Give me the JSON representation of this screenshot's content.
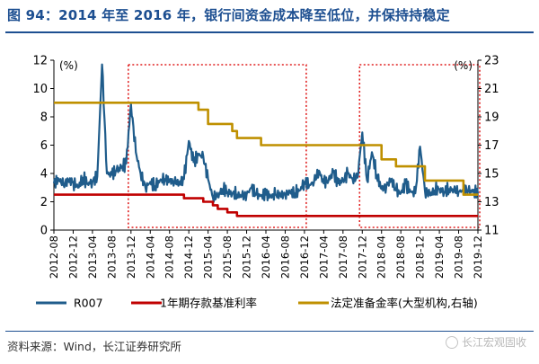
{
  "figure_title": "图 94：2014 年至 2016 年，银行间资金成本降至低位，并保持持稳定",
  "source": "资料来源：Wind，长江证券研究所",
  "watermark": "长江宏观固收",
  "colors": {
    "title": "#1d4f91",
    "r007": "#1f5c8b",
    "deposit": "#c00000",
    "rrr": "#bf9000",
    "highlight_box": "#e02020"
  },
  "chart_data": {
    "type": "line",
    "x": [
      "2012-08",
      "2012-12",
      "2013-04",
      "2013-08",
      "2013-12",
      "2014-04",
      "2014-08",
      "2014-12",
      "2015-04",
      "2015-08",
      "2015-12",
      "2016-04",
      "2016-08",
      "2016-12",
      "2017-04",
      "2017-08",
      "2017-12",
      "2018-04",
      "2018-08",
      "2018-12",
      "2019-04",
      "2019-08",
      "2019-12"
    ],
    "x_tick_labels": [
      "2012-08",
      "2012-12",
      "2013-04",
      "2013-08",
      "2013-12",
      "2014-04",
      "2014-08",
      "2014-12",
      "2015-04",
      "2015-08",
      "2015-12",
      "2016-04",
      "2016-08",
      "2016-12",
      "2017-04",
      "2017-08",
      "2017-12",
      "2018-04",
      "2018-08",
      "2018-12",
      "2019-04",
      "2019-08",
      "2019-12"
    ],
    "y_left": {
      "unit_label": "(%)",
      "ylim": [
        0,
        12
      ],
      "ticks": [
        "0",
        "2",
        "4",
        "6",
        "8",
        "10",
        "12"
      ]
    },
    "y_right": {
      "unit_label": "(%)",
      "ylim": [
        11,
        23
      ],
      "ticks": [
        "11",
        "13",
        "15",
        "17",
        "19",
        "21",
        "23"
      ]
    },
    "grid": false,
    "legend_placement": "bottom",
    "series": [
      {
        "name": "R007",
        "axis": "left",
        "points": [
          [
            "2012-08",
            3.3
          ],
          [
            "2012-09",
            3.6
          ],
          [
            "2012-10",
            3.2
          ],
          [
            "2012-11",
            3.5
          ],
          [
            "2012-12",
            3.4
          ],
          [
            "2013-01",
            3.0
          ],
          [
            "2013-02",
            3.7
          ],
          [
            "2013-03",
            3.3
          ],
          [
            "2013-04",
            3.4
          ],
          [
            "2013-05",
            3.8
          ],
          [
            "2013-06",
            11.7
          ],
          [
            "2013-07",
            4.0
          ],
          [
            "2013-08",
            3.9
          ],
          [
            "2013-09",
            4.2
          ],
          [
            "2013-10",
            4.4
          ],
          [
            "2013-11",
            4.7
          ],
          [
            "2013-12",
            8.9
          ],
          [
            "2014-01",
            5.5
          ],
          [
            "2014-02",
            4.0
          ],
          [
            "2014-03",
            3.0
          ],
          [
            "2014-04",
            3.4
          ],
          [
            "2014-05",
            3.1
          ],
          [
            "2014-06",
            3.5
          ],
          [
            "2014-07",
            3.6
          ],
          [
            "2014-08",
            3.5
          ],
          [
            "2014-09",
            3.4
          ],
          [
            "2014-10",
            3.3
          ],
          [
            "2014-11",
            3.6
          ],
          [
            "2014-12",
            6.3
          ],
          [
            "2015-01",
            4.8
          ],
          [
            "2015-02",
            5.3
          ],
          [
            "2015-03",
            5.2
          ],
          [
            "2015-04",
            3.6
          ],
          [
            "2015-05",
            2.3
          ],
          [
            "2015-06",
            2.4
          ],
          [
            "2015-07",
            2.9
          ],
          [
            "2015-08",
            2.7
          ],
          [
            "2015-09",
            2.6
          ],
          [
            "2015-10",
            2.5
          ],
          [
            "2015-11",
            2.4
          ],
          [
            "2015-12",
            2.5
          ],
          [
            "2016-01",
            3.0
          ],
          [
            "2016-02",
            2.5
          ],
          [
            "2016-03",
            2.4
          ],
          [
            "2016-04",
            2.5
          ],
          [
            "2016-05",
            2.4
          ],
          [
            "2016-06",
            2.5
          ],
          [
            "2016-07",
            2.5
          ],
          [
            "2016-08",
            2.5
          ],
          [
            "2016-09",
            2.7
          ],
          [
            "2016-10",
            2.6
          ],
          [
            "2016-11",
            2.8
          ],
          [
            "2016-12",
            3.4
          ],
          [
            "2017-01",
            3.2
          ],
          [
            "2017-02",
            3.4
          ],
          [
            "2017-03",
            4.2
          ],
          [
            "2017-04",
            3.3
          ],
          [
            "2017-05",
            3.5
          ],
          [
            "2017-06",
            4.1
          ],
          [
            "2017-07",
            3.3
          ],
          [
            "2017-08",
            3.5
          ],
          [
            "2017-09",
            4.0
          ],
          [
            "2017-10",
            3.6
          ],
          [
            "2017-11",
            3.7
          ],
          [
            "2017-12",
            6.9
          ],
          [
            "2018-01",
            3.5
          ],
          [
            "2018-02",
            5.5
          ],
          [
            "2018-03",
            3.9
          ],
          [
            "2018-04",
            2.9
          ],
          [
            "2018-05",
            3.1
          ],
          [
            "2018-06",
            3.6
          ],
          [
            "2018-07",
            2.8
          ],
          [
            "2018-08",
            2.6
          ],
          [
            "2018-09",
            3.3
          ],
          [
            "2018-10",
            2.7
          ],
          [
            "2018-11",
            2.6
          ],
          [
            "2018-12",
            5.9
          ],
          [
            "2019-01",
            2.8
          ],
          [
            "2019-02",
            2.5
          ],
          [
            "2019-03",
            2.8
          ],
          [
            "2019-04",
            2.9
          ],
          [
            "2019-05",
            2.7
          ],
          [
            "2019-06",
            2.9
          ],
          [
            "2019-07",
            2.8
          ],
          [
            "2019-08",
            2.7
          ],
          [
            "2019-09",
            2.8
          ],
          [
            "2019-10",
            2.8
          ],
          [
            "2019-11",
            2.7
          ],
          [
            "2019-12",
            2.6
          ]
        ]
      },
      {
        "name": "1年期存款基准利率",
        "axis": "left",
        "points": [
          [
            "2012-08",
            2.5
          ],
          [
            "2014-11",
            2.5
          ],
          [
            "2014-11",
            2.25
          ],
          [
            "2015-03",
            2.25
          ],
          [
            "2015-03",
            2.0
          ],
          [
            "2015-05",
            2.0
          ],
          [
            "2015-05",
            1.75
          ],
          [
            "2015-06",
            1.75
          ],
          [
            "2015-06",
            1.5
          ],
          [
            "2015-08",
            1.5
          ],
          [
            "2015-08",
            1.25
          ],
          [
            "2015-10",
            1.25
          ],
          [
            "2015-10",
            1.0
          ],
          [
            "2019-12",
            1.0
          ]
        ]
      },
      {
        "name": "法定准备金率(大型机构,右轴)",
        "axis": "right",
        "points": [
          [
            "2012-08",
            20.0
          ],
          [
            "2015-02",
            20.0
          ],
          [
            "2015-02",
            19.5
          ],
          [
            "2015-04",
            19.5
          ],
          [
            "2015-04",
            18.5
          ],
          [
            "2015-09",
            18.5
          ],
          [
            "2015-09",
            18.0
          ],
          [
            "2015-10",
            18.0
          ],
          [
            "2015-10",
            17.5
          ],
          [
            "2016-03",
            17.5
          ],
          [
            "2016-03",
            17.0
          ],
          [
            "2018-04",
            17.0
          ],
          [
            "2018-04",
            16.0
          ],
          [
            "2018-07",
            16.0
          ],
          [
            "2018-07",
            15.5
          ],
          [
            "2019-01",
            15.5
          ],
          [
            "2019-01",
            14.5
          ],
          [
            "2019-09",
            14.5
          ],
          [
            "2019-09",
            13.5
          ],
          [
            "2019-12",
            13.5
          ]
        ]
      }
    ],
    "annotations": [
      {
        "type": "dashed-box",
        "x_range": [
          "2013-12",
          "2016-12"
        ]
      },
      {
        "type": "dashed-box",
        "x_range": [
          "2017-12",
          "2019-12"
        ]
      }
    ]
  }
}
